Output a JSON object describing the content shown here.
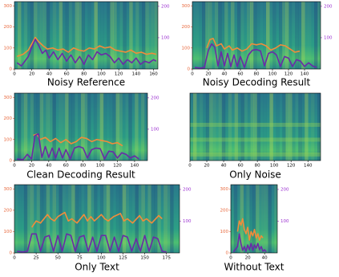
{
  "chart_data": [
    {
      "type": "line",
      "title": "Noisy Reference",
      "xlim": [
        0,
        165
      ],
      "xticks": [
        0,
        20,
        40,
        60,
        80,
        100,
        120,
        140,
        160
      ],
      "ylim": [
        0,
        320
      ],
      "yticks": [
        0,
        100,
        200,
        300
      ],
      "y2lim": [
        0,
        215
      ],
      "y2ticks": [
        100,
        200
      ],
      "series": [
        {
          "color": "#f28c3a",
          "x": [
            3,
            10,
            16,
            20,
            24,
            28,
            33,
            38,
            44,
            50,
            56,
            62,
            68,
            74,
            80,
            86,
            92,
            98,
            104,
            110,
            116,
            122,
            128,
            134,
            140,
            146,
            152,
            158,
            163
          ],
          "values": [
            60,
            70,
            90,
            120,
            150,
            130,
            110,
            95,
            100,
            90,
            95,
            80,
            100,
            90,
            85,
            100,
            95,
            110,
            100,
            105,
            90,
            85,
            80,
            90,
            75,
            80,
            70,
            75,
            70
          ]
        },
        {
          "color": "#6a2aa8",
          "axis": "y2",
          "x": [
            3,
            8,
            12,
            16,
            20,
            24,
            28,
            32,
            36,
            40,
            45,
            50,
            55,
            60,
            65,
            70,
            75,
            80,
            85,
            90,
            95,
            100,
            105,
            110,
            115,
            120,
            125,
            130,
            135,
            140,
            145,
            150,
            155,
            160,
            163
          ],
          "values": [
            20,
            10,
            25,
            40,
            70,
            95,
            75,
            50,
            60,
            35,
            55,
            30,
            50,
            25,
            45,
            20,
            40,
            15,
            45,
            30,
            55,
            45,
            50,
            40,
            20,
            35,
            15,
            30,
            20,
            35,
            15,
            25,
            20,
            30,
            25
          ]
        }
      ]
    },
    {
      "type": "line",
      "title": "Noisy Decoding Result",
      "xlim": [
        0,
        160
      ],
      "xticks": [
        0,
        20,
        40,
        60,
        80,
        100,
        120,
        140
      ],
      "ylim": [
        0,
        320
      ],
      "yticks": [
        0,
        100,
        200,
        300
      ],
      "y2lim": [
        0,
        215
      ],
      "y2ticks": [
        100,
        200
      ],
      "series": [
        {
          "color": "#f28c3a",
          "x": [
            18,
            22,
            26,
            30,
            36,
            40,
            46,
            50,
            56,
            62,
            68,
            74,
            80,
            86,
            92,
            98,
            104,
            110,
            116,
            122,
            128,
            134
          ],
          "values": [
            100,
            140,
            145,
            110,
            120,
            95,
            110,
            90,
            100,
            85,
            95,
            120,
            115,
            120,
            110,
            90,
            100,
            115,
            110,
            95,
            80,
            85
          ]
        },
        {
          "color": "#6a2aa8",
          "axis": "y2",
          "x": [
            3,
            10,
            15,
            20,
            24,
            28,
            32,
            36,
            40,
            44,
            48,
            52,
            56,
            60,
            65,
            70,
            75,
            80,
            85,
            90,
            95,
            100,
            105,
            110,
            115,
            120,
            125,
            130,
            135,
            140,
            145,
            150,
            155
          ],
          "values": [
            5,
            3,
            5,
            60,
            80,
            70,
            10,
            55,
            10,
            50,
            8,
            45,
            8,
            40,
            5,
            45,
            60,
            62,
            58,
            10,
            50,
            55,
            45,
            8,
            40,
            35,
            8,
            30,
            25,
            8,
            20,
            10,
            5
          ]
        }
      ]
    },
    {
      "type": "line",
      "title": "Clean Decoding Result",
      "xlim": [
        0,
        155
      ],
      "xticks": [
        0,
        20,
        40,
        60,
        80,
        100,
        120,
        140
      ],
      "ylim": [
        0,
        320
      ],
      "yticks": [
        0,
        100,
        200,
        300
      ],
      "y2lim": [
        0,
        215
      ],
      "y2ticks": [
        100,
        200
      ],
      "series": [
        {
          "color": "#f28c3a",
          "x": [
            22,
            26,
            30,
            36,
            42,
            48,
            54,
            60,
            66,
            72,
            78,
            84,
            90,
            96,
            102,
            108,
            114,
            120,
            126
          ],
          "values": [
            120,
            125,
            100,
            110,
            90,
            105,
            85,
            100,
            80,
            90,
            110,
            105,
            90,
            100,
            95,
            90,
            80,
            85,
            70
          ]
        },
        {
          "color": "#6a2aa8",
          "axis": "y2",
          "x": [
            3,
            10,
            15,
            20,
            24,
            28,
            32,
            36,
            40,
            44,
            48,
            52,
            56,
            60,
            65,
            70,
            75,
            80,
            85,
            90,
            95,
            100,
            105,
            110,
            115,
            120,
            125,
            130,
            135,
            140,
            145
          ],
          "values": [
            5,
            3,
            20,
            5,
            80,
            85,
            10,
            45,
            10,
            40,
            8,
            40,
            8,
            35,
            5,
            40,
            45,
            40,
            8,
            35,
            40,
            38,
            5,
            30,
            28,
            8,
            25,
            20,
            8,
            15,
            5
          ]
        }
      ]
    },
    {
      "type": "line",
      "title": "Only Noise",
      "xlim": [
        0,
        155
      ],
      "xticks": [
        0,
        20,
        40,
        60,
        80,
        100,
        120,
        140
      ],
      "series": []
    },
    {
      "type": "line",
      "title": "Only Text",
      "xlim": [
        0,
        190
      ],
      "xticks": [
        0,
        25,
        50,
        75,
        100,
        125,
        150,
        175
      ],
      "ylim": [
        0,
        320
      ],
      "yticks": [
        0,
        100,
        200,
        300
      ],
      "y2lim": [
        0,
        215
      ],
      "y2ticks": [
        100,
        200
      ],
      "series": [
        {
          "color": "#f28c3a",
          "x": [
            20,
            25,
            30,
            38,
            42,
            46,
            50,
            58,
            62,
            66,
            72,
            80,
            84,
            88,
            92,
            100,
            104,
            108,
            114,
            122,
            126,
            130,
            136,
            144,
            148,
            152,
            158,
            166,
            170
          ],
          "values": [
            120,
            150,
            140,
            180,
            160,
            150,
            170,
            190,
            150,
            160,
            140,
            180,
            150,
            170,
            150,
            180,
            160,
            150,
            170,
            185,
            150,
            160,
            140,
            175,
            150,
            160,
            140,
            175,
            160
          ]
        },
        {
          "color": "#6a2aa8",
          "axis": "y2",
          "x": [
            3,
            10,
            15,
            20,
            25,
            30,
            35,
            40,
            45,
            50,
            55,
            60,
            65,
            70,
            75,
            80,
            85,
            90,
            95,
            100,
            105,
            110,
            115,
            120,
            125,
            130,
            135,
            140,
            145,
            150,
            155,
            160,
            165,
            170,
            175
          ],
          "values": [
            5,
            3,
            5,
            60,
            60,
            5,
            50,
            55,
            5,
            55,
            5,
            60,
            55,
            5,
            50,
            55,
            5,
            50,
            5,
            55,
            55,
            5,
            50,
            5,
            55,
            50,
            5,
            45,
            5,
            55,
            5,
            50,
            45,
            5,
            3
          ]
        }
      ]
    },
    {
      "type": "line",
      "title": "Without Text",
      "xlim": [
        0,
        55
      ],
      "xticks": [
        0,
        20,
        40
      ],
      "ylim": [
        0,
        320
      ],
      "yticks": [
        0,
        100,
        200,
        300
      ],
      "y2lim": [
        0,
        215
      ],
      "y2ticks": [
        100,
        200
      ],
      "series": [
        {
          "color": "#f28c3a",
          "x": [
            8,
            10,
            12,
            14,
            16,
            18,
            20,
            22,
            24,
            26,
            28,
            30,
            32,
            34,
            36,
            38
          ],
          "values": [
            100,
            150,
            130,
            160,
            110,
            90,
            120,
            60,
            100,
            80,
            110,
            70,
            90,
            60,
            80,
            70
          ]
        },
        {
          "color": "#6a2aa8",
          "axis": "y2",
          "x": [
            3,
            8,
            10,
            12,
            14,
            16,
            18,
            20,
            22,
            24,
            26,
            28,
            30,
            32,
            34,
            36,
            38,
            40,
            42
          ],
          "values": [
            3,
            20,
            60,
            30,
            8,
            20,
            5,
            25,
            10,
            30,
            8,
            25,
            15,
            30,
            10,
            20,
            5,
            10,
            3
          ]
        }
      ]
    }
  ]
}
